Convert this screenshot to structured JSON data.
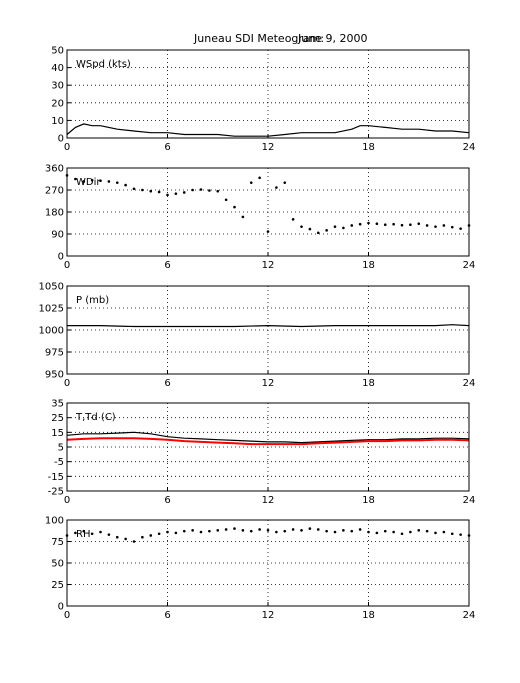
{
  "figure": {
    "title": "Juneau SDI Meteogram:",
    "date": "June  9, 2000"
  },
  "chart_data": [
    {
      "type": "line",
      "label": "WSpd (kts)",
      "xlim": [
        0,
        24
      ],
      "ylim": [
        0,
        50
      ],
      "xticks": [
        0,
        6,
        12,
        18,
        24
      ],
      "yticks": [
        0,
        10,
        20,
        30,
        40,
        50
      ],
      "grid": true,
      "series": [
        {
          "color": "#000000",
          "x": [
            0,
            0.5,
            1,
            1.5,
            2,
            3,
            4,
            5,
            6,
            7,
            8,
            9,
            10,
            11,
            12,
            13,
            14,
            15,
            16,
            17,
            17.5,
            18,
            19,
            20,
            21,
            22,
            23,
            24
          ],
          "y": [
            2,
            6,
            8,
            7,
            7,
            5,
            4,
            3,
            3,
            2,
            2,
            2,
            1,
            1,
            1,
            2,
            3,
            3,
            3,
            5,
            7,
            7,
            6,
            5,
            5,
            4,
            4,
            3
          ]
        }
      ]
    },
    {
      "type": "scatter",
      "label": "WDir",
      "xlim": [
        0,
        24
      ],
      "ylim": [
        0,
        360
      ],
      "xticks": [
        0,
        6,
        12,
        18,
        24
      ],
      "yticks": [
        0,
        90,
        180,
        270,
        360
      ],
      "grid": true,
      "series": [
        {
          "color": "#000000",
          "x": [
            0,
            0.5,
            1,
            1.5,
            2,
            2.5,
            3,
            3.5,
            4,
            4.5,
            5,
            5.5,
            6,
            6.5,
            7,
            7.5,
            8,
            8.5,
            9,
            9.5,
            10,
            10.5,
            11,
            11.5,
            12,
            12.5,
            13,
            13.5,
            14,
            14.5,
            15,
            15.5,
            16,
            16.5,
            17,
            17.5,
            18,
            18.5,
            19,
            19.5,
            20,
            20.5,
            21,
            21.5,
            22,
            22.5,
            23,
            23.5,
            24
          ],
          "y": [
            330,
            315,
            305,
            310,
            308,
            305,
            300,
            290,
            275,
            270,
            265,
            262,
            250,
            255,
            260,
            270,
            272,
            268,
            265,
            230,
            200,
            160,
            300,
            320,
            100,
            280,
            300,
            150,
            120,
            110,
            95,
            105,
            120,
            115,
            125,
            130,
            135,
            132,
            128,
            130,
            126,
            128,
            132,
            125,
            120,
            125,
            118,
            112,
            125
          ]
        }
      ]
    },
    {
      "type": "line",
      "label": "P (mb)",
      "xlim": [
        0,
        24
      ],
      "ylim": [
        950,
        1050
      ],
      "xticks": [
        0,
        6,
        12,
        18,
        24
      ],
      "yticks": [
        950,
        975,
        1000,
        1025,
        1050
      ],
      "grid": true,
      "series": [
        {
          "color": "#000000",
          "x": [
            0,
            2,
            4,
            6,
            8,
            10,
            12,
            14,
            16,
            18,
            20,
            22,
            23,
            24
          ],
          "y": [
            1005,
            1005,
            1004,
            1004,
            1004,
            1004,
            1005,
            1004,
            1005,
            1005,
            1005,
            1005,
            1006,
            1005
          ]
        }
      ]
    },
    {
      "type": "line",
      "label": "T,Td (C)",
      "xlim": [
        0,
        24
      ],
      "ylim": [
        -25,
        35
      ],
      "xticks": [
        0,
        6,
        12,
        18,
        24
      ],
      "yticks": [
        -25,
        -15,
        -5,
        5,
        15,
        25,
        35
      ],
      "grid": true,
      "series": [
        {
          "color": "#000000",
          "x": [
            0,
            1,
            2,
            3,
            4,
            5,
            6,
            7,
            8,
            9,
            10,
            11,
            12,
            13,
            14,
            15,
            16,
            17,
            18,
            19,
            20,
            21,
            22,
            23,
            24
          ],
          "y": [
            13,
            14,
            14,
            14.5,
            15,
            14,
            12,
            11,
            10.5,
            10,
            9.5,
            9,
            8.5,
            8.5,
            8,
            8.5,
            9,
            9.5,
            10,
            10,
            10.5,
            10.5,
            11,
            11,
            10.5
          ]
        },
        {
          "color": "#ff0000",
          "x": [
            0,
            1,
            2,
            3,
            4,
            5,
            6,
            7,
            8,
            9,
            10,
            11,
            12,
            13,
            14,
            15,
            16,
            17,
            18,
            19,
            20,
            21,
            22,
            23,
            24
          ],
          "y": [
            10,
            10.5,
            11,
            11,
            11,
            10.5,
            10,
            9,
            8.5,
            8,
            7.5,
            7,
            7,
            7,
            7,
            7.5,
            8,
            8.5,
            9,
            9,
            9.5,
            9.5,
            10,
            10,
            9.5
          ]
        }
      ]
    },
    {
      "type": "scatter",
      "label": "RH",
      "xlim": [
        0,
        24
      ],
      "ylim": [
        0,
        100
      ],
      "xticks": [
        0,
        6,
        12,
        18,
        24
      ],
      "yticks": [
        0,
        25,
        50,
        75,
        100
      ],
      "grid": true,
      "series": [
        {
          "color": "#000000",
          "x": [
            0,
            0.5,
            1,
            1.5,
            2,
            2.5,
            3,
            3.5,
            4,
            4.5,
            5,
            5.5,
            6,
            6.5,
            7,
            7.5,
            8,
            8.5,
            9,
            9.5,
            10,
            10.5,
            11,
            11.5,
            12,
            12.5,
            13,
            13.5,
            14,
            14.5,
            15,
            15.5,
            16,
            16.5,
            17,
            17.5,
            18,
            18.5,
            19,
            19.5,
            20,
            20.5,
            21,
            21.5,
            22,
            22.5,
            23,
            23.5,
            24
          ],
          "y": [
            82,
            85,
            87,
            84,
            86,
            83,
            80,
            78,
            75,
            80,
            82,
            84,
            86,
            85,
            87,
            88,
            86,
            87,
            88,
            89,
            90,
            88,
            87,
            89,
            88,
            86,
            87,
            89,
            88,
            90,
            89,
            87,
            86,
            88,
            87,
            89,
            86,
            85,
            87,
            86,
            84,
            86,
            88,
            87,
            85,
            86,
            84,
            83,
            82
          ]
        }
      ]
    }
  ]
}
